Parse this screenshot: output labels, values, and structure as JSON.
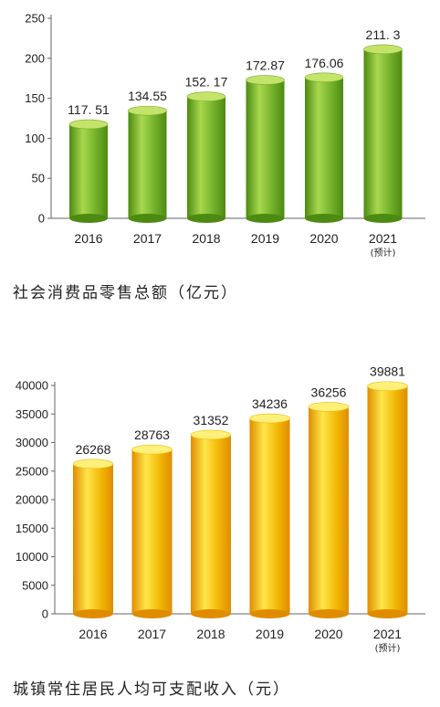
{
  "chart_data": [
    {
      "type": "bar",
      "title": "社会消费品零售总额（亿元）",
      "categories": [
        "2016",
        "2017",
        "2018",
        "2019",
        "2020",
        "2021"
      ],
      "category_notes": [
        "",
        "",
        "",
        "",
        "",
        "(预计)"
      ],
      "values": [
        117.51,
        134.55,
        152.17,
        172.87,
        176.06,
        211.3
      ],
      "value_labels": [
        "117. 51",
        "134.55",
        "152. 17",
        "172.87",
        "176.06",
        "211. 3"
      ],
      "yticks": [
        0,
        50,
        100,
        150,
        200,
        250
      ],
      "ylim": [
        0,
        250
      ],
      "colors": {
        "body": "#72b02a",
        "light": "#a8d84e",
        "top": "#c4e36a",
        "dark": "#4d8a12"
      }
    },
    {
      "type": "bar",
      "title": "城镇常住居民人均可支配收入（元）",
      "categories": [
        "2016",
        "2017",
        "2018",
        "2019",
        "2020",
        "2021"
      ],
      "category_notes": [
        "",
        "",
        "",
        "",
        "",
        "(预计)"
      ],
      "values": [
        26268,
        28763,
        31352,
        34236,
        36256,
        39881
      ],
      "value_labels": [
        "26268",
        "28763",
        "31352",
        "34236",
        "36256",
        "39881"
      ],
      "yticks": [
        0,
        5000,
        10000,
        15000,
        20000,
        25000,
        30000,
        35000,
        40000
      ],
      "ylim": [
        0,
        40000
      ],
      "colors": {
        "body": "#f2b705",
        "light": "#ffe64a",
        "top": "#fff07a",
        "dark": "#e08c00"
      }
    }
  ]
}
